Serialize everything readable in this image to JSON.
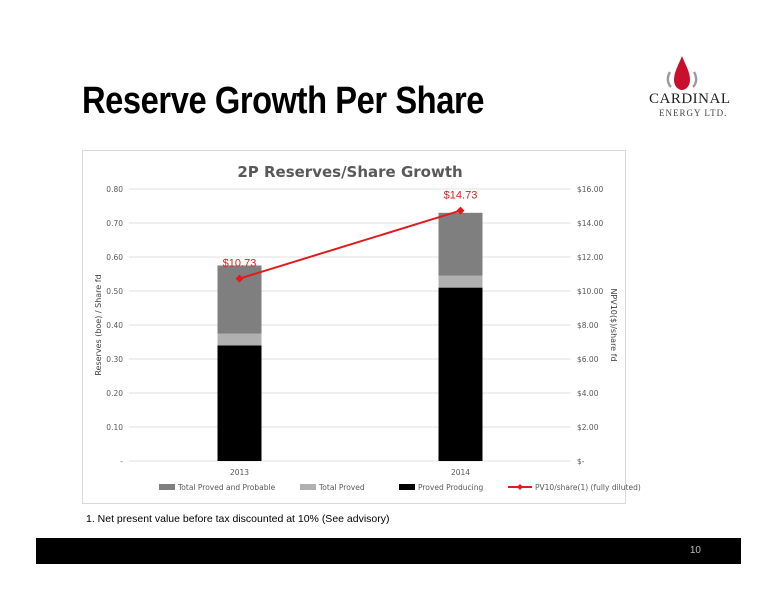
{
  "slide": {
    "title": "Reserve Growth Per Share",
    "footnote": "1. Net present value before tax discounted at 10% (See advisory)",
    "page_number": "10"
  },
  "logo": {
    "name": "CARDINAL",
    "sub": "ENERGY LTD.",
    "flame_color": "#c8102e"
  },
  "chart_data": {
    "type": "bar",
    "title": "2P Reserves/Share Growth",
    "categories": [
      "2013",
      "2014"
    ],
    "ylabel": "Reserves (boe) / Share fd",
    "y2label": "NPV10($)/share fd",
    "ylim": [
      0,
      0.8
    ],
    "y2lim": [
      0,
      16
    ],
    "yticks": [
      "-",
      "0.10",
      "0.20",
      "0.30",
      "0.40",
      "0.50",
      "0.60",
      "0.70",
      "0.80"
    ],
    "y2ticks": [
      "$-",
      "$2.00",
      "$4.00",
      "$6.00",
      "$8.00",
      "$10.00",
      "$12.00",
      "$14.00",
      "$16.00"
    ],
    "stacked": true,
    "series": [
      {
        "name": "Proved Producing",
        "values": [
          0.34,
          0.51
        ],
        "color": "#000000"
      },
      {
        "name": "Total Proved",
        "values": [
          0.035,
          0.035
        ],
        "color": "#b0b0b0"
      },
      {
        "name": "Total Proved and Probable",
        "values": [
          0.2,
          0.185
        ],
        "color": "#7f7f7f"
      }
    ],
    "line": {
      "name": "PV10/share(1) (fully diluted)",
      "values": [
        10.73,
        14.73
      ],
      "labels": [
        "$10.73",
        "$14.73"
      ],
      "color": "#e31a1c"
    },
    "legend": [
      "Total Proved and Probable",
      "Total Proved",
      "Proved Producing",
      "PV10/share(1) (fully diluted)"
    ],
    "grid": true,
    "legend_position": "bottom"
  }
}
